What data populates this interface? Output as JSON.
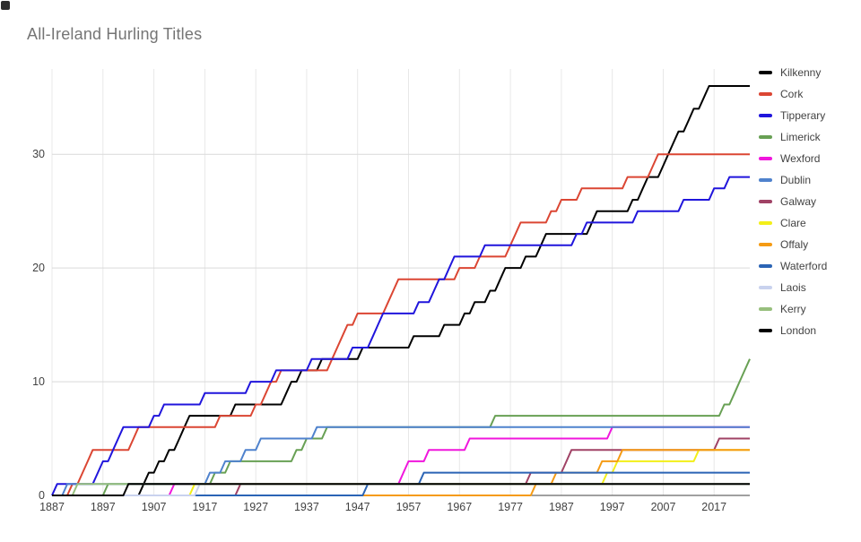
{
  "title": "All-Ireland Hurling Titles",
  "ui_colors": {
    "background": "#ffffff",
    "title_text": "#757575",
    "tick_label": "#424242",
    "legend_text": "#424242",
    "gridline_v": "#e8e8e8",
    "gridline_h": "#d9d9d9",
    "baseline": "#424242"
  },
  "chart_data": {
    "type": "line",
    "subtype": "cumulative-step",
    "title": "All-Ireland Hurling Titles",
    "xlabel": "",
    "ylabel": "",
    "xlim": [
      1887,
      2024
    ],
    "ylim": [
      0,
      37.5
    ],
    "x_ticks": [
      1887,
      1897,
      1907,
      1917,
      1927,
      1937,
      1947,
      1957,
      1967,
      1977,
      1987,
      1997,
      2007,
      2017
    ],
    "y_ticks": [
      0,
      10,
      20,
      30
    ],
    "grid": true,
    "legend_position": "right",
    "line_width": 2,
    "series": [
      {
        "name": "Kilkenny",
        "color": "#000000",
        "total": 36,
        "win_years": [
          1904,
          1905,
          1907,
          1909,
          1911,
          1912,
          1913,
          1922,
          1932,
          1933,
          1935,
          1939,
          1947,
          1957,
          1963,
          1967,
          1969,
          1972,
          1974,
          1975,
          1979,
          1982,
          1983,
          1992,
          1993,
          2000,
          2002,
          2003,
          2006,
          2007,
          2008,
          2009,
          2011,
          2012,
          2014,
          2015
        ]
      },
      {
        "name": "Cork",
        "color": "#db4633",
        "total": 30,
        "win_years": [
          1890,
          1892,
          1893,
          1894,
          1902,
          1903,
          1919,
          1926,
          1928,
          1929,
          1931,
          1941,
          1942,
          1943,
          1944,
          1946,
          1952,
          1953,
          1954,
          1966,
          1970,
          1976,
          1977,
          1978,
          1984,
          1986,
          1990,
          1999,
          2004,
          2005
        ]
      },
      {
        "name": "Tipperary",
        "color": "#2015dc",
        "total": 28,
        "win_years": [
          1887,
          1895,
          1896,
          1898,
          1899,
          1900,
          1906,
          1908,
          1916,
          1925,
          1930,
          1937,
          1945,
          1949,
          1950,
          1951,
          1958,
          1961,
          1962,
          1964,
          1965,
          1971,
          1989,
          1991,
          2001,
          2010,
          2016,
          2019
        ]
      },
      {
        "name": "Limerick",
        "color": "#68a054",
        "total": 12,
        "win_years": [
          1897,
          1918,
          1921,
          1934,
          1936,
          1940,
          1973,
          2018,
          2020,
          2021,
          2022,
          2023
        ]
      },
      {
        "name": "Wexford",
        "color": "#f016dc",
        "total": 6,
        "win_years": [
          1910,
          1955,
          1956,
          1960,
          1968,
          1996
        ]
      },
      {
        "name": "Dublin",
        "color": "#4f82cd",
        "total": 6,
        "win_years": [
          1889,
          1917,
          1920,
          1924,
          1927,
          1938
        ]
      },
      {
        "name": "Galway",
        "color": "#a04265",
        "total": 5,
        "win_years": [
          1923,
          1980,
          1987,
          1988,
          2017
        ]
      },
      {
        "name": "Clare",
        "color": "#f3ef19",
        "total": 4,
        "win_years": [
          1914,
          1995,
          1997,
          2013
        ]
      },
      {
        "name": "Offaly",
        "color": "#f59b14",
        "total": 4,
        "win_years": [
          1981,
          1985,
          1994,
          1998
        ]
      },
      {
        "name": "Waterford",
        "color": "#2b64b5",
        "total": 2,
        "win_years": [
          1948,
          1959
        ]
      },
      {
        "name": "Laois",
        "color": "#c9d2ee",
        "total": 1,
        "win_years": [
          1915
        ]
      },
      {
        "name": "Kerry",
        "color": "#97bf7d",
        "total": 1,
        "win_years": [
          1891
        ]
      },
      {
        "name": "London",
        "color": "#000000",
        "total": 1,
        "win_years": [
          1901
        ]
      }
    ]
  }
}
